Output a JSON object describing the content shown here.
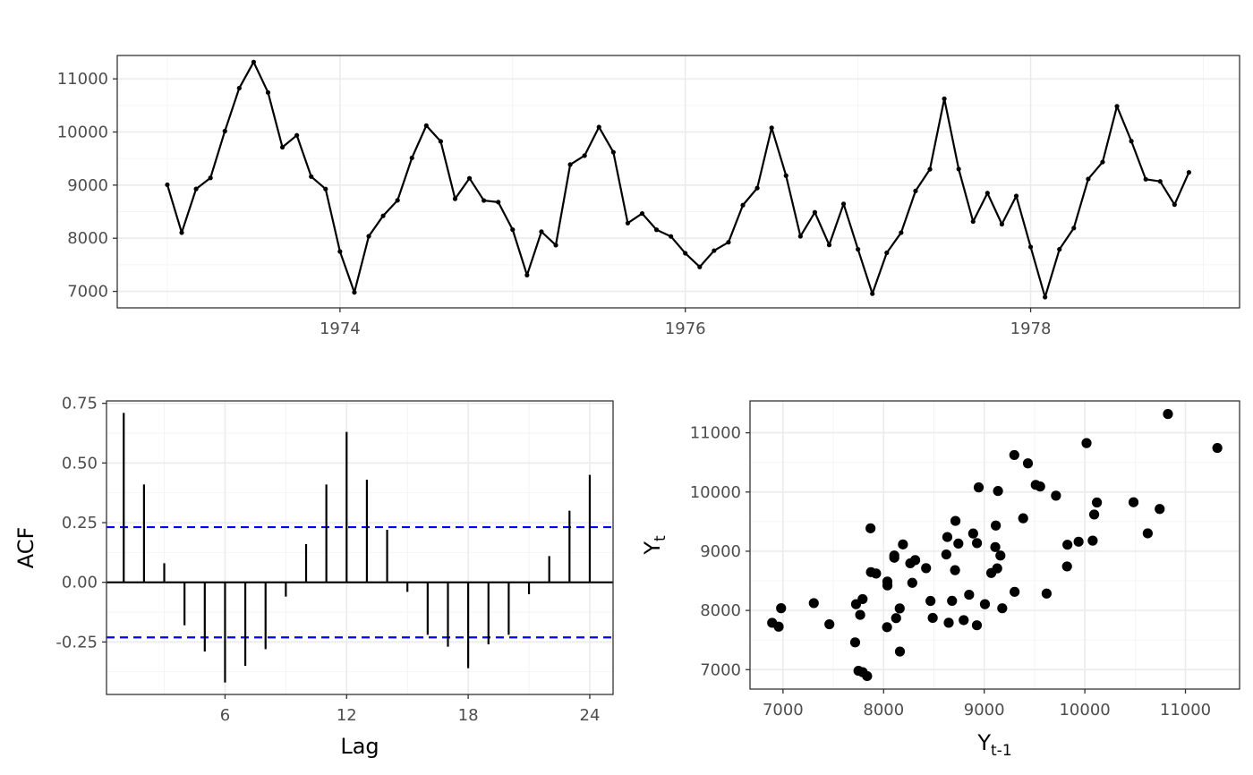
{
  "chart_data": [
    {
      "type": "line",
      "title": "",
      "xlabel": "",
      "ylabel": "",
      "x_ticks": [
        "1974",
        "1976",
        "1978"
      ],
      "y_ticks": [
        "7000",
        "8000",
        "9000",
        "10000",
        "11000"
      ],
      "xlim": [
        1972.71,
        1979.21
      ],
      "ylim": [
        6690,
        11440
      ],
      "series": [
        {
          "start_year": 1973,
          "frequency": 12,
          "values": [
            9007,
            8106,
            8928,
            9137,
            10017,
            10826,
            11317,
            10744,
            9713,
            9938,
            9161,
            8927,
            7750,
            6981,
            8038,
            8422,
            8714,
            9512,
            10120,
            9823,
            8743,
            9129,
            8710,
            8680,
            8162,
            7306,
            8124,
            7870,
            9387,
            9556,
            10093,
            9620,
            8285,
            8466,
            8160,
            8034,
            7717,
            7461,
            7767,
            7925,
            8623,
            8945,
            10078,
            9179,
            8037,
            8488,
            7874,
            8647,
            7792,
            6957,
            7726,
            8106,
            8890,
            9299,
            10625,
            9302,
            8314,
            8850,
            8265,
            8796,
            7836,
            6892,
            7791,
            8192,
            9115,
            9434,
            10484,
            9827,
            9110,
            9070,
            8633,
            9240
          ]
        }
      ]
    },
    {
      "type": "bar",
      "title": "",
      "xlabel": "Lag",
      "ylabel": "ACF",
      "x_ticks": [
        "6",
        "12",
        "18",
        "24"
      ],
      "y_ticks": [
        "-0.25",
        "0.00",
        "0.25",
        "0.50",
        "0.75"
      ],
      "xlim": [
        0.15,
        25.15
      ],
      "ylim": [
        -0.47,
        0.76
      ],
      "lags": [
        1,
        2,
        3,
        4,
        5,
        6,
        7,
        8,
        9,
        10,
        11,
        12,
        13,
        14,
        15,
        16,
        17,
        18,
        19,
        20,
        21,
        22,
        23,
        24
      ],
      "values": [
        0.71,
        0.41,
        0.08,
        -0.18,
        -0.29,
        -0.42,
        -0.35,
        -0.28,
        -0.06,
        0.16,
        0.41,
        0.63,
        0.43,
        0.22,
        -0.04,
        -0.22,
        -0.27,
        -0.36,
        -0.26,
        -0.22,
        -0.05,
        0.11,
        0.3,
        0.45
      ],
      "confidence_bounds": [
        -0.231,
        0.231
      ],
      "confidence_color": "#0000ff"
    },
    {
      "type": "scatter",
      "title": "",
      "xlabel": "Y",
      "xlabel_sub": "t-1",
      "ylabel": "Y",
      "ylabel_sub": "t",
      "x_ticks": [
        "7000",
        "8000",
        "9000",
        "10000",
        "11000"
      ],
      "y_ticks": [
        "7000",
        "8000",
        "9000",
        "10000",
        "11000"
      ],
      "xlim": [
        6672,
        11538
      ],
      "ylim": [
        6672,
        11538
      ],
      "note": "Each point pairs the value at month t-1 (x) with the value at month t (y) of the series in the first chart."
    }
  ]
}
